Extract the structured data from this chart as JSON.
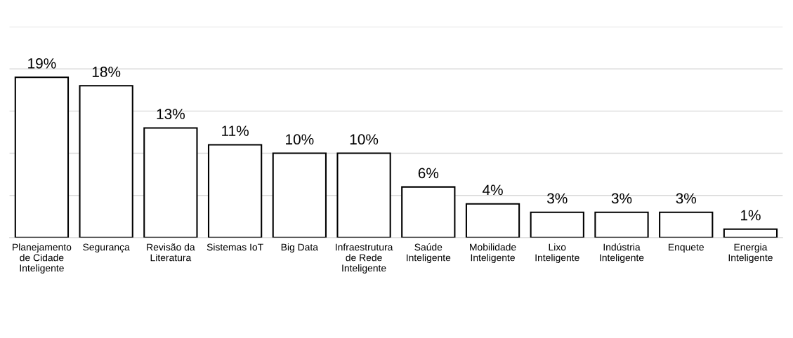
{
  "chart_data": {
    "type": "bar",
    "categories": [
      "Planejamento\nde Cidade\nInteligente",
      "Segurança",
      "Revisão da\nLiteratura",
      "Sistemas IoT",
      "Big Data",
      "Infraestrutura\nde Rede\nInteligente",
      "Saúde\nInteligente",
      "Mobilidade\nInteligente",
      "Lixo\nInteligente",
      "Indústria\nInteligente",
      "Enquete",
      "Energia\nInteligente"
    ],
    "values": [
      19,
      18,
      13,
      11,
      10,
      10,
      6,
      4,
      3,
      3,
      3,
      1
    ],
    "value_labels": [
      "19%",
      "18%",
      "13%",
      "11%",
      "10%",
      "10%",
      "6%",
      "4%",
      "3%",
      "3%",
      "3%",
      "1%"
    ],
    "color": "#ffffff",
    "ylim": [
      0,
      25
    ],
    "yticks": [
      {
        "value": 0,
        "label": null
      },
      {
        "value": 5,
        "label": null
      },
      {
        "value": 10,
        "label": null
      },
      {
        "value": 15,
        "label": null
      },
      {
        "value": 20,
        "label": null
      },
      {
        "value": 25,
        "label": null
      }
    ],
    "grid": "y",
    "tick_labels": "x"
  }
}
